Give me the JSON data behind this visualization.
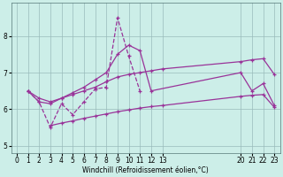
{
  "xlabel": "Windchill (Refroidissement éolien,°C)",
  "bg_color": "#cceee8",
  "line_color": "#993399",
  "grid_color": "#99bbbb",
  "xlim": [
    -0.5,
    23.5
  ],
  "ylim": [
    4.8,
    8.9
  ],
  "yticks": [
    5,
    6,
    7,
    8
  ],
  "xticks": [
    0,
    1,
    2,
    3,
    4,
    5,
    6,
    7,
    8,
    9,
    10,
    11,
    12,
    13,
    20,
    21,
    22,
    23
  ],
  "series1_x": [
    1,
    2,
    3,
    4,
    5,
    6,
    7,
    8,
    9,
    10,
    11
  ],
  "series1_y": [
    6.5,
    6.2,
    5.5,
    6.15,
    5.85,
    6.2,
    6.55,
    6.6,
    8.5,
    7.45,
    6.5
  ],
  "series2_x": [
    1,
    2,
    3,
    4,
    5,
    6,
    7,
    8,
    9,
    10,
    11,
    12,
    20,
    21,
    22,
    23
  ],
  "series2_y": [
    6.5,
    6.2,
    6.15,
    6.3,
    6.45,
    6.6,
    6.8,
    7.0,
    7.5,
    7.75,
    7.6,
    6.5,
    7.0,
    6.5,
    6.7,
    6.1
  ],
  "series3_x": [
    1,
    2,
    3,
    4,
    5,
    6,
    7,
    8,
    9,
    10,
    11,
    12,
    13,
    20,
    21,
    22,
    23
  ],
  "series3_y": [
    6.5,
    6.3,
    6.2,
    6.3,
    6.4,
    6.5,
    6.6,
    6.75,
    6.88,
    6.95,
    7.0,
    7.05,
    7.1,
    7.3,
    7.35,
    7.38,
    6.95
  ],
  "series4_x": [
    3,
    4,
    5,
    6,
    7,
    8,
    9,
    10,
    11,
    12,
    13,
    20,
    21,
    22,
    23
  ],
  "series4_y": [
    5.55,
    5.62,
    5.68,
    5.75,
    5.81,
    5.87,
    5.93,
    5.98,
    6.03,
    6.07,
    6.1,
    6.35,
    6.38,
    6.4,
    6.05
  ]
}
